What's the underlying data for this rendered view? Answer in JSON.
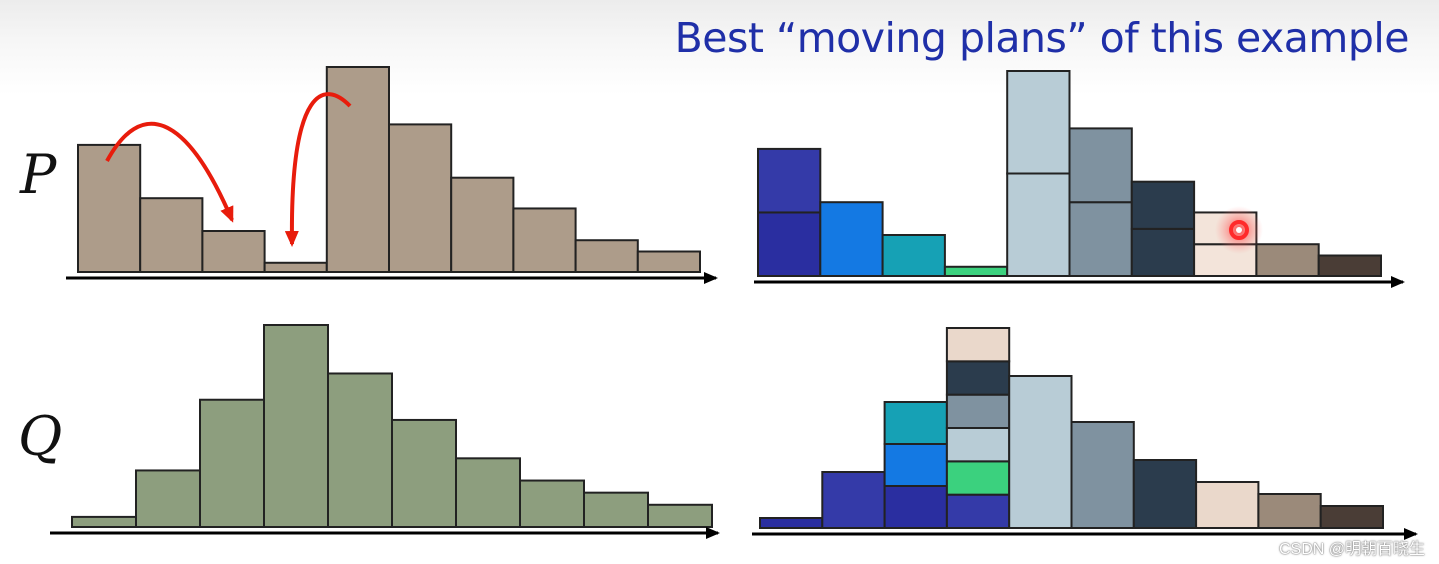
{
  "title": "Best “moving plans” of this example",
  "labels": {
    "p": "P",
    "q": "Q"
  },
  "watermark": "CSDN @明朝百晓生",
  "colors": {
    "p_bar": "#ad9c8a",
    "q_bar": "#8d9e7e",
    "arrow": "#e81c0c",
    "axis": "#000000",
    "title": "#1f2fa8",
    "plan_palette": [
      "#2a2ea0",
      "#4148b8",
      "#1479e3",
      "#16a1b5",
      "#3bd17e",
      "#b8ccd6",
      "#7f92a0",
      "#2b3c4d",
      "#ead8cb",
      "#9b8a7a",
      "#4a3d36"
    ]
  },
  "histograms": {
    "p_values": [
      0.62,
      0.36,
      0.2,
      0.045,
      1.0,
      0.72,
      0.46,
      0.31,
      0.155,
      0.1
    ],
    "q_values": [
      0.05,
      0.28,
      0.63,
      1.0,
      0.76,
      0.53,
      0.34,
      0.23,
      0.17,
      0.11
    ],
    "p_plan_segments": [
      [
        "#2a2ea0",
        "#343aa8"
      ],
      [
        "#1479e3"
      ],
      [
        "#16a1b5"
      ],
      [
        "#3bd17e"
      ],
      [
        "#b8ccd6",
        "#b8ccd6"
      ],
      [
        "#7f92a0",
        "#7f92a0"
      ],
      [
        "#2b3c4d",
        "#2b3c4d"
      ],
      [
        "#f3e4da",
        "#f3e4da"
      ],
      [
        "#9b8a7a"
      ],
      [
        "#4a3d36"
      ]
    ],
    "q_plan_segments": [
      [
        "#2a2ea0"
      ],
      [
        "#343aa8"
      ],
      [
        "#2a2ea0",
        "#1479e3",
        "#16a1b5"
      ],
      [
        "#343aa8",
        "#3bd17e",
        "#b8ccd6",
        "#7f92a0",
        "#2b3c4d",
        "#ead8cb"
      ],
      [
        "#b8ccd6"
      ],
      [
        "#7f92a0"
      ],
      [
        "#2b3c4d"
      ],
      [
        "#ead8cb"
      ],
      [
        "#9b8a7a"
      ],
      [
        "#4a3d36"
      ]
    ]
  }
}
